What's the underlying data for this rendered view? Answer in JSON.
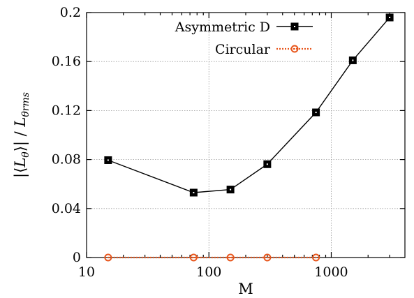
{
  "chart_data": {
    "type": "line",
    "xscale": "log",
    "xlim": [
      10,
      4000
    ],
    "ylim": [
      0,
      0.2
    ],
    "xlabel": "M",
    "ylabel": "|⟨Lθ⟩| / Lθrms",
    "xticks": [
      {
        "value": 10,
        "label": "10"
      },
      {
        "value": 100,
        "label": "100"
      },
      {
        "value": 1000,
        "label": "1000"
      }
    ],
    "yticks": [
      {
        "value": 0,
        "label": "0"
      },
      {
        "value": 0.04,
        "label": "0.04"
      },
      {
        "value": 0.08,
        "label": "0.08"
      },
      {
        "value": 0.12,
        "label": "0.12"
      },
      {
        "value": 0.16,
        "label": "0.16"
      },
      {
        "value": 0.2,
        "label": "0.2"
      }
    ],
    "grid": true,
    "legend_position": "top-right",
    "series": [
      {
        "name": "Asymmetric D",
        "color": "#000000",
        "marker": "square",
        "line": "solid",
        "x": [
          15,
          75,
          150,
          300,
          750,
          1500,
          3000
        ],
        "y": [
          0.0795,
          0.053,
          0.0555,
          0.0762,
          0.1185,
          0.161,
          0.196
        ]
      },
      {
        "name": "Circular",
        "color": "#e8561c",
        "marker": "circle",
        "line": "dotted",
        "x": [
          15,
          75,
          150,
          300,
          750
        ],
        "y": [
          0,
          0,
          0,
          0,
          0
        ]
      }
    ]
  }
}
